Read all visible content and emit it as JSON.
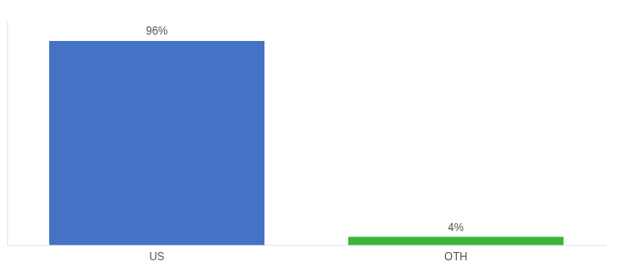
{
  "chart_data": {
    "type": "bar",
    "categories": [
      "US",
      "OTH"
    ],
    "values": [
      96,
      4
    ],
    "value_labels": [
      "96%",
      "4%"
    ],
    "data_labels": true,
    "colors": [
      "#4472c4",
      "#3cb53c"
    ],
    "ylim": [
      0,
      105
    ],
    "tick_labels": "x",
    "grid": false
  }
}
